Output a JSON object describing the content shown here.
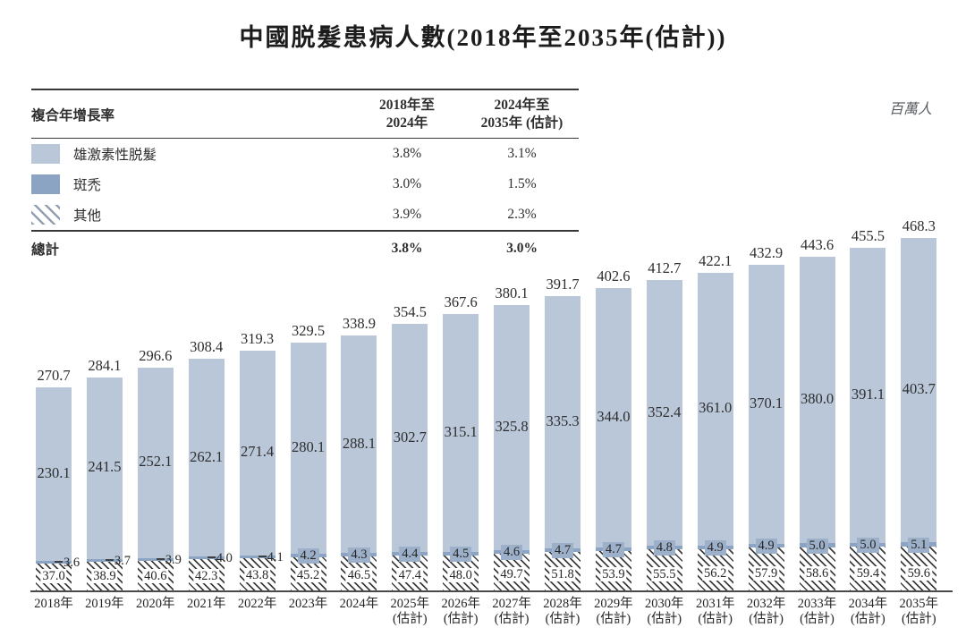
{
  "title": "中國脱髮患病人數(2018年至2035年(估計))",
  "unit_label": "百萬人",
  "legend_table": {
    "header": {
      "label": "複合年增長率",
      "col1_line1": "2018年至",
      "col1_line2": "2024年",
      "col2_line1": "2024年至",
      "col2_line2": "2035年 (估計)"
    },
    "rows": [
      {
        "label": "雄激素性脱髮",
        "cagr_2018_2024": "3.8%",
        "cagr_2024_2035": "3.1%"
      },
      {
        "label": "斑禿",
        "cagr_2018_2024": "3.0%",
        "cagr_2024_2035": "1.5%"
      },
      {
        "label": "其他",
        "cagr_2018_2024": "3.9%",
        "cagr_2024_2035": "2.3%"
      }
    ],
    "total_row": {
      "label": "總計",
      "cagr_2018_2024": "3.8%",
      "cagr_2024_2035": "3.0%"
    }
  },
  "chart_data": {
    "type": "bar",
    "stacked": true,
    "title": "中國脱髮患病人數(2018年至2035年(估計))",
    "ylabel": "百萬人",
    "ylim": [
      0,
      480
    ],
    "grid": false,
    "legend_position": "top-left",
    "categories": [
      {
        "label": "2018年",
        "sublabel": ""
      },
      {
        "label": "2019年",
        "sublabel": ""
      },
      {
        "label": "2020年",
        "sublabel": ""
      },
      {
        "label": "2021年",
        "sublabel": ""
      },
      {
        "label": "2022年",
        "sublabel": ""
      },
      {
        "label": "2023年",
        "sublabel": ""
      },
      {
        "label": "2024年",
        "sublabel": ""
      },
      {
        "label": "2025年",
        "sublabel": "(估計)"
      },
      {
        "label": "2026年",
        "sublabel": "(估計)"
      },
      {
        "label": "2027年",
        "sublabel": "(估計)"
      },
      {
        "label": "2028年",
        "sublabel": "(估計)"
      },
      {
        "label": "2029年",
        "sublabel": "(估計)"
      },
      {
        "label": "2030年",
        "sublabel": "(估計)"
      },
      {
        "label": "2031年",
        "sublabel": "(估計)"
      },
      {
        "label": "2032年",
        "sublabel": "(估計)"
      },
      {
        "label": "2033年",
        "sublabel": "(估計)"
      },
      {
        "label": "2034年",
        "sublabel": "(估計)"
      },
      {
        "label": "2035年",
        "sublabel": "(估計)"
      }
    ],
    "series": [
      {
        "name": "雄激素性脱髮",
        "color": "#b9c7d9",
        "values": [
          230.1,
          241.5,
          252.1,
          262.1,
          271.4,
          280.1,
          288.1,
          302.7,
          315.1,
          325.8,
          335.3,
          344.0,
          352.4,
          361.0,
          370.1,
          380.0,
          391.1,
          403.7
        ]
      },
      {
        "name": "斑禿",
        "color": "#8ca4c4",
        "values": [
          3.6,
          3.7,
          3.9,
          4.0,
          4.1,
          4.2,
          4.3,
          4.4,
          4.5,
          4.6,
          4.7,
          4.7,
          4.8,
          4.9,
          4.9,
          5.0,
          5.0,
          5.1
        ]
      },
      {
        "name": "其他",
        "pattern": "diagonal-hatch",
        "values": [
          37.0,
          38.9,
          40.6,
          42.3,
          43.8,
          45.2,
          46.5,
          47.4,
          48.0,
          49.7,
          51.8,
          53.9,
          55.5,
          56.2,
          57.9,
          58.6,
          59.4,
          59.6
        ]
      }
    ],
    "totals": [
      270.7,
      284.1,
      296.6,
      308.4,
      319.3,
      329.5,
      338.9,
      354.5,
      367.6,
      380.1,
      391.7,
      402.6,
      412.7,
      422.1,
      432.9,
      443.6,
      455.5,
      468.3
    ]
  },
  "colors": {
    "bar_main": "#b9c7d9",
    "bar_areata": "#8ca4c4",
    "hatch_line": "#3e3e3e",
    "axis": "#4a4a4a",
    "text": "#2e2e2e",
    "unit_text": "#5a5e63"
  }
}
